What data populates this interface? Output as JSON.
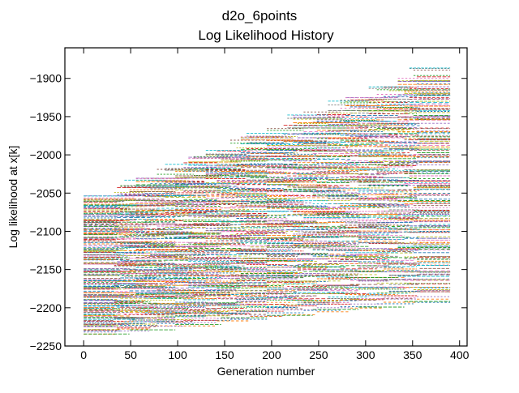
{
  "chart_data": {
    "type": "line",
    "title": "d2o_6points",
    "subtitle": "Log Likelihood History",
    "xlabel": "Generation number",
    "ylabel": "Log likelihood at x[k]",
    "xlim": [
      -20,
      408
    ],
    "ylim": [
      -2250,
      -1860
    ],
    "x_ticks": [
      0,
      50,
      100,
      150,
      200,
      250,
      300,
      350,
      400
    ],
    "y_ticks": [
      -2250,
      -2200,
      -2150,
      -2100,
      -2050,
      -2000,
      -1950,
      -1900
    ],
    "grid": false,
    "legend": "none",
    "series_count": 220,
    "x_start": 0,
    "x_end": 390,
    "series_colors": [
      "#1f77b4",
      "#ff7f0e",
      "#2ca02c",
      "#d62728",
      "#9467bd",
      "#8c564b",
      "#e377c2",
      "#7f7f7f",
      "#bcbd22",
      "#17becf"
    ],
    "initial_range": [
      -2232,
      -2055
    ],
    "final_range": [
      -2185,
      -1872
    ],
    "notes_visible_text": []
  }
}
